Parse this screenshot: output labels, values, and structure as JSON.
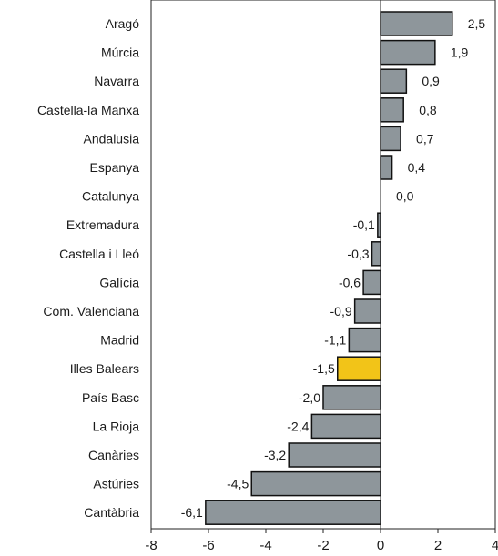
{
  "chart_data": {
    "type": "bar",
    "orientation": "horizontal",
    "categories": [
      "Aragó",
      "Múrcia",
      "Navarra",
      "Castella-la Manxa",
      "Andalusia",
      "Espanya",
      "Catalunya",
      "Extremadura",
      "Castella i Lleó",
      "Galícia",
      "Com. Valenciana",
      "Madrid",
      "Illes Balears",
      "País Basc",
      "La Rioja",
      "Canàries",
      "Astúries",
      "Cantàbria"
    ],
    "values": [
      2.5,
      1.9,
      0.9,
      0.8,
      0.7,
      0.4,
      0.0,
      -0.1,
      -0.3,
      -0.6,
      -0.9,
      -1.1,
      -1.5,
      -2.0,
      -2.4,
      -3.2,
      -4.5,
      -6.1
    ],
    "value_labels": [
      "2,5",
      "1,9",
      "0,9",
      "0,8",
      "0,7",
      "0,4",
      "0,0",
      "-0,1",
      "-0,3",
      "-0,6",
      "-0,9",
      "-1,1",
      "-1,5",
      "-2,0",
      "-2,4",
      "-3,2",
      "-4,5",
      "-6,1"
    ],
    "highlight_category": "Illes Balears",
    "xlim": [
      -8,
      4
    ],
    "x_ticks": [
      -8,
      -6,
      -4,
      -2,
      0,
      2,
      4
    ],
    "x_tick_labels": [
      "-8",
      "-6",
      "-4",
      "-2",
      "0",
      "2",
      "4"
    ],
    "grid": false,
    "title": "",
    "xlabel": "",
    "ylabel": "",
    "colors": {
      "bar": "#8e969b",
      "highlight": "#f2c418",
      "bar_stroke": "#111111",
      "axis": "#222222"
    }
  }
}
